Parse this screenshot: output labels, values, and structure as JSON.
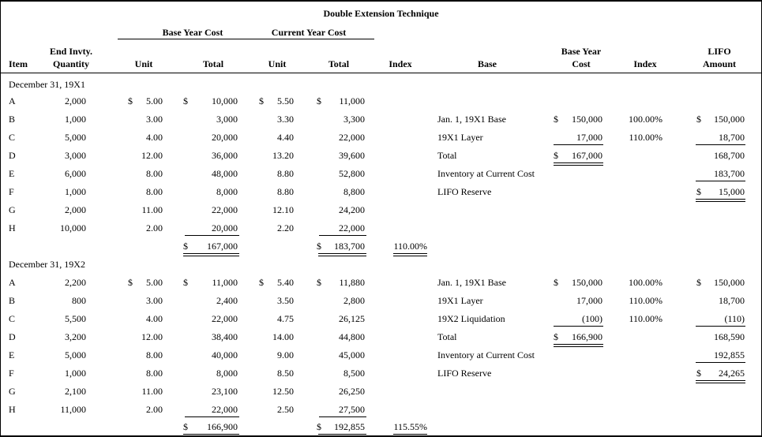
{
  "title": "Double Extension Technique",
  "columns": {
    "item": "Item",
    "qty1": "End Invty.",
    "qty2": "Quantity",
    "base_group": "Base Year Cost",
    "current_group": "Current Year Cost",
    "unit_base": "Unit",
    "total_base": "Total",
    "unit_current": "Unit",
    "total_current": "Total",
    "index_left": "Index",
    "base": "Base",
    "byc1": "Base Year",
    "byc2": "Cost",
    "index_right": "Index",
    "lifo1": "LIFO",
    "lifo2": "Amount"
  },
  "sections": [
    {
      "label": "December 31, 19X1",
      "rows": [
        {
          "item": "A",
          "qty": "2,000",
          "u1d": "$",
          "u1": "5.00",
          "t1d": "$",
          "t1": "10,000",
          "u2d": "$",
          "u2": "5.50",
          "t2d": "$",
          "t2": "11,000"
        },
        {
          "item": "B",
          "qty": "1,000",
          "u1": "3.00",
          "t1": "3,000",
          "u2": "3.30",
          "t2": "3,300"
        },
        {
          "item": "C",
          "qty": "5,000",
          "u1": "4.00",
          "t1": "20,000",
          "u2": "4.40",
          "t2": "22,000"
        },
        {
          "item": "D",
          "qty": "3,000",
          "u1": "12.00",
          "t1": "36,000",
          "u2": "13.20",
          "t2": "39,600"
        },
        {
          "item": "E",
          "qty": "6,000",
          "u1": "8.00",
          "t1": "48,000",
          "u2": "8.80",
          "t2": "52,800"
        },
        {
          "item": "F",
          "qty": "1,000",
          "u1": "8.00",
          "t1": "8,000",
          "u2": "8.80",
          "t2": "8,800"
        },
        {
          "item": "G",
          "qty": "2,000",
          "u1": "11.00",
          "t1": "22,000",
          "u2": "12.10",
          "t2": "24,200"
        },
        {
          "item": "H",
          "qty": "10,000",
          "u1": "2.00",
          "t1": "20,000",
          "t1_ul": true,
          "u2": "2.20",
          "t2": "22,000",
          "t2_ul": true
        }
      ],
      "total": {
        "t1d": "$",
        "t1": "167,000",
        "t2d": "$",
        "t2": "183,700",
        "index": "110.00%"
      },
      "schedule": {
        "start_row": 1,
        "lines": [
          {
            "label": "Jan. 1, 19X1 Base",
            "bd": "$",
            "b": "150,000",
            "idx": "100.00%",
            "ld": "$",
            "l": "150,000"
          },
          {
            "label": "19X1 Layer",
            "b": "17,000",
            "b_ul": true,
            "idx": "110.00%",
            "l": "18,700",
            "l_ul": true
          },
          {
            "label": "Total",
            "bd": "$",
            "b": "167,000",
            "b_dul": true,
            "l": "168,700"
          },
          {
            "label": "Inventory at Current Cost",
            "l": "183,700",
            "l_ul": true
          },
          {
            "label": "LIFO Reserve",
            "ld": "$",
            "l": "15,000",
            "l_dul": true
          }
        ]
      }
    },
    {
      "label": "December 31, 19X2",
      "rows": [
        {
          "item": "A",
          "qty": "2,200",
          "u1d": "$",
          "u1": "5.00",
          "t1d": "$",
          "t1": "11,000",
          "u2d": "$",
          "u2": "5.40",
          "t2d": "$",
          "t2": "11,880"
        },
        {
          "item": "B",
          "qty": "800",
          "u1": "3.00",
          "t1": "2,400",
          "u2": "3.50",
          "t2": "2,800"
        },
        {
          "item": "C",
          "qty": "5,500",
          "u1": "4.00",
          "t1": "22,000",
          "u2": "4.75",
          "t2": "26,125"
        },
        {
          "item": "D",
          "qty": "3,200",
          "u1": "12.00",
          "t1": "38,400",
          "u2": "14.00",
          "t2": "44,800"
        },
        {
          "item": "E",
          "qty": "5,000",
          "u1": "8.00",
          "t1": "40,000",
          "u2": "9.00",
          "t2": "45,000"
        },
        {
          "item": "F",
          "qty": "1,000",
          "u1": "8.00",
          "t1": "8,000",
          "u2": "8.50",
          "t2": "8,500"
        },
        {
          "item": "G",
          "qty": "2,100",
          "u1": "11.00",
          "t1": "23,100",
          "u2": "12.50",
          "t2": "26,250"
        },
        {
          "item": "H",
          "qty": "11,000",
          "u1": "2.00",
          "t1": "22,000",
          "t1_ul": true,
          "u2": "2.50",
          "t2": "27,500",
          "t2_ul": true
        }
      ],
      "total": {
        "t1d": "$",
        "t1": "166,900",
        "t2d": "$",
        "t2": "192,855",
        "index": "115.55%"
      },
      "schedule": {
        "start_row": 0,
        "lines": [
          {
            "label": "Jan. 1, 19X1 Base",
            "bd": "$",
            "b": "150,000",
            "idx": "100.00%",
            "ld": "$",
            "l": "150,000"
          },
          {
            "label": "19X1 Layer",
            "b": "17,000",
            "idx": "110.00%",
            "l": "18,700"
          },
          {
            "label": "19X2 Liquidation",
            "b": "(100)",
            "b_ul": true,
            "idx": "110.00%",
            "l": "(110)",
            "l_ul": true
          },
          {
            "label": "Total",
            "bd": "$",
            "b": "166,900",
            "b_dul": true,
            "l": "168,590"
          },
          {
            "label": "Inventory at Current Cost",
            "l": "192,855",
            "l_ul": true
          },
          {
            "label": "LIFO Reserve",
            "ld": "$",
            "l": "24,265",
            "l_dul": true
          }
        ]
      }
    }
  ]
}
